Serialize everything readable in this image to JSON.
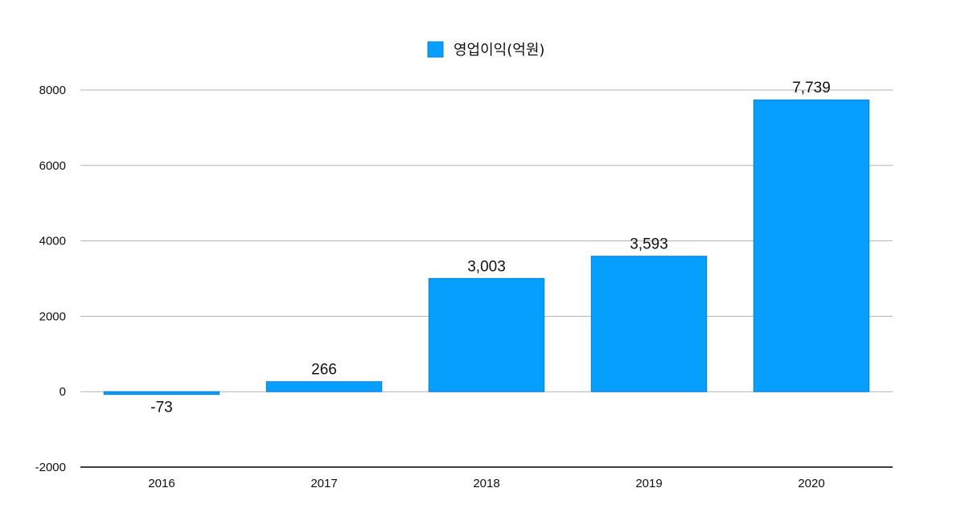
{
  "chart_data": {
    "type": "bar",
    "categories": [
      "2016",
      "2017",
      "2018",
      "2019",
      "2020"
    ],
    "series": [
      {
        "name": "영업이익(억원)",
        "values": [
          -73,
          266,
          3003,
          3593,
          7739
        ],
        "data_labels": [
          "-73",
          "266",
          "3,003",
          "3,593",
          "7,739"
        ]
      }
    ],
    "title": "",
    "xlabel": "",
    "ylabel": "",
    "ylim": [
      -2000,
      8000
    ],
    "yticks": [
      8000,
      6000,
      4000,
      2000,
      0,
      -2000
    ],
    "ytick_labels": [
      "8000",
      "6000",
      "4000",
      "2000",
      "0",
      "-2000"
    ],
    "grid": true,
    "legend_position": "top-center",
    "bar_color": "#069ffd"
  }
}
